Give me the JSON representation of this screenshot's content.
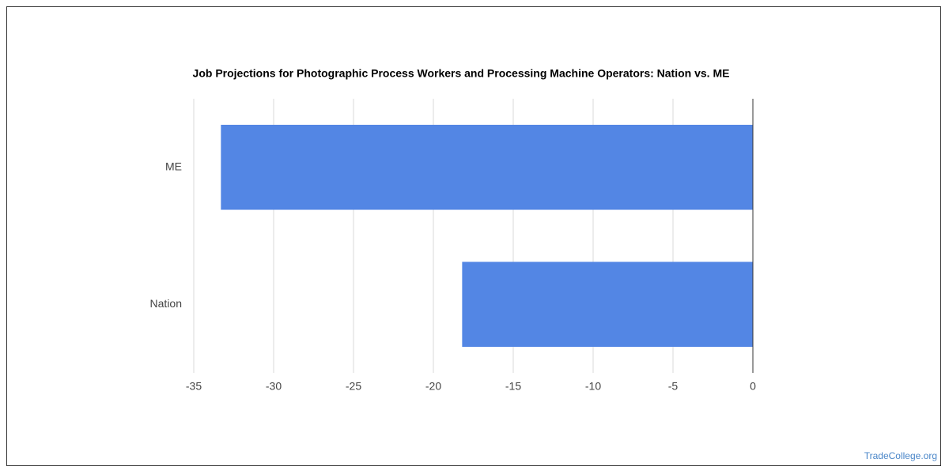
{
  "chart_data": {
    "type": "bar",
    "orientation": "horizontal",
    "title": "Job Projections for Photographic Process Workers and Processing Machine Operators: Nation vs. ME",
    "categories": [
      "ME",
      "Nation"
    ],
    "values": [
      -33.3,
      -18.2
    ],
    "color": "#5386e4",
    "xlim": [
      -35,
      0
    ],
    "xticks": [
      -35,
      -30,
      -25,
      -20,
      -15,
      -10,
      -5,
      0
    ],
    "grid": true,
    "source": "TradeCollege.org"
  }
}
